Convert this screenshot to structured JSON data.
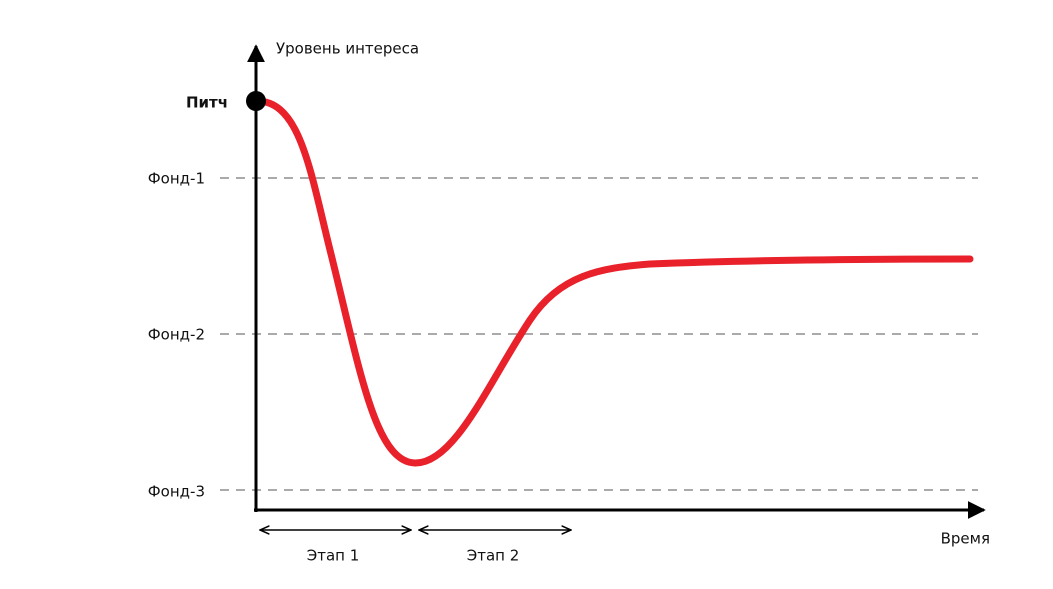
{
  "axes": {
    "y_label": "Уровень интереса",
    "x_label": "Время"
  },
  "start_label": "Питч",
  "levels": [
    "Фонд-1",
    "Фонд-2",
    "Фонд-3"
  ],
  "stages": [
    "Этап 1",
    "Этап 2"
  ]
}
